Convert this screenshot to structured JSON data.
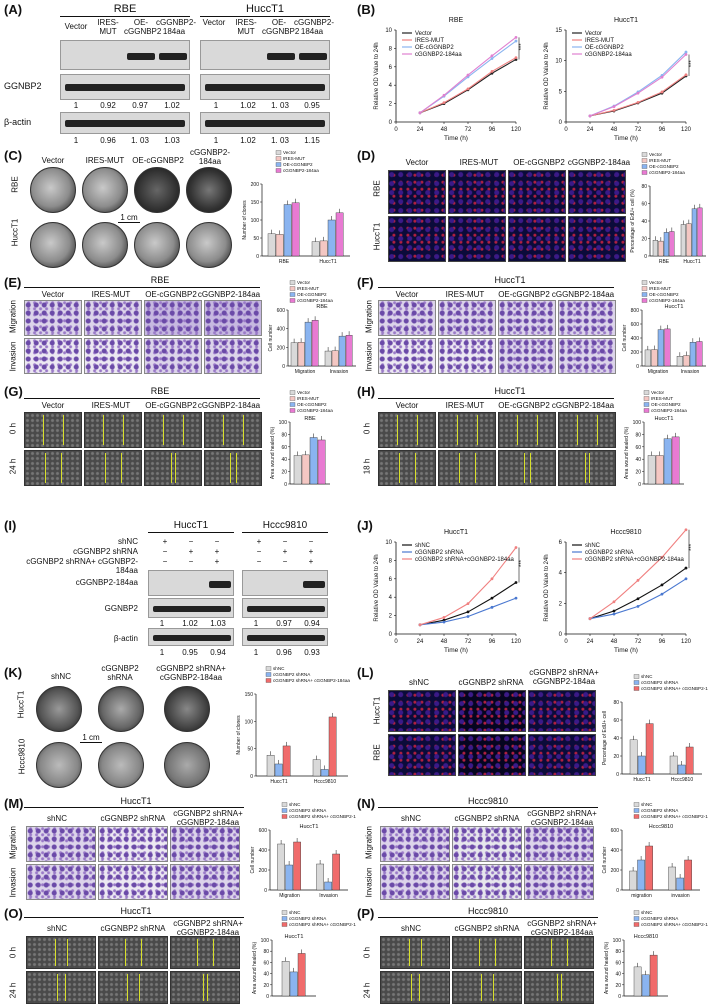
{
  "panels": {
    "A": {
      "label": "(A)",
      "groups": [
        "RBE",
        "HuccT1"
      ],
      "lanes": [
        "Vector",
        "IRES-MUT",
        "OE-cGGNBP2",
        "cGGNBP2-184aa"
      ],
      "rows": [
        "cGGNBP2-184aa",
        "GGNBP2",
        "β-actin"
      ],
      "row_labels_visible": [
        "GGNBP2",
        "β-actin"
      ],
      "ggnbp2_values": [
        [
          "1",
          "0.92",
          "0.97",
          "1.02"
        ],
        [
          "1",
          "1.02",
          "1. 03",
          "0.95"
        ]
      ],
      "actin_values": [
        [
          "1",
          "0.96",
          "1. 03",
          "1.03"
        ],
        [
          "1",
          "1.02",
          "1. 03",
          "1.15"
        ]
      ]
    },
    "B": {
      "label": "(B)",
      "sig": "***"
    },
    "C": {
      "label": "(C)",
      "lanes": [
        "Vector",
        "IRES-MUT",
        "OE-cGGNBP2",
        "cGGNBP2-184aa"
      ],
      "rows": [
        "RBE",
        "HuccT1"
      ],
      "scale": "1 cm"
    },
    "D": {
      "label": "(D)",
      "lanes": [
        "Vector",
        "IRES-MUT",
        "OE-cGGNBP2",
        "cGGNBP2-184aa"
      ],
      "rows": [
        "RBE",
        "HuccT1"
      ]
    },
    "E": {
      "label": "(E)",
      "title": "RBE",
      "lanes": [
        "Vector",
        "IRES-MUT",
        "OE-cGGNBP2",
        "cGGNBP2-184aa"
      ],
      "rows": [
        "Migration",
        "Invasion"
      ]
    },
    "F": {
      "label": "(F)",
      "title": "HuccT1",
      "lanes": [
        "Vector",
        "IRES-MUT",
        "OE-cGGNBP2",
        "cGGNBP2-184aa"
      ],
      "rows": [
        "Migration",
        "Invasion"
      ]
    },
    "G": {
      "label": "(G)",
      "title": "RBE",
      "lanes": [
        "Vector",
        "IRES-MUT",
        "OE-cGGNBP2",
        "cGGNBP2-184aa"
      ],
      "rows": [
        "0 h",
        "24 h"
      ]
    },
    "H": {
      "label": "(H)",
      "title": "HuccT1",
      "lanes": [
        "Vector",
        "IRES-MUT",
        "OE-cGGNBP2",
        "cGGNBP2-184aa"
      ],
      "rows": [
        "0 h",
        "18 h"
      ]
    },
    "I": {
      "label": "(I)",
      "groups": [
        "HuccT1",
        "Hccc9810"
      ],
      "conditions": [
        "shNC",
        "cGGNBP2 shRNA",
        "cGGNBP2 shRNA+ cGGNBP2-184aa"
      ],
      "signs": [
        [
          "+",
          "−",
          "−"
        ],
        [
          "−",
          "+",
          "+"
        ],
        [
          "−",
          "−",
          "+"
        ]
      ],
      "rows": [
        "cGGNBP2-184aa",
        "GGNBP2",
        "β-actin"
      ],
      "ggnbp2_values": [
        [
          "1",
          "1.02",
          "1.03"
        ],
        [
          "1",
          "0.97",
          "0.94"
        ]
      ],
      "actin_values": [
        [
          "1",
          "0.95",
          "0.94"
        ],
        [
          "1",
          "0.96",
          "0.93"
        ]
      ]
    },
    "J": {
      "label": "(J)",
      "sig": "***"
    },
    "K": {
      "label": "(K)",
      "lanes": [
        "shNC",
        "cGGNBP2 shRNA",
        "cGGNBP2 shRNA+ cGGNBP2-184aa"
      ],
      "rows": [
        "HuccT1",
        "Hccc9810"
      ],
      "scale": "1 cm"
    },
    "L": {
      "label": "(L)",
      "lanes": [
        "shNC",
        "cGGNBP2 shRNA",
        "cGGNBP2 shRNA+ cGGNBP2-184aa"
      ],
      "rows": [
        "HuccT1",
        "RBE"
      ]
    },
    "M": {
      "label": "(M)",
      "title": "HuccT1",
      "lanes": [
        "shNC",
        "cGGNBP2 shRNA",
        "cGGNBP2 shRNA+ cGGNBP2-184aa"
      ],
      "rows": [
        "Migration",
        "Invasion"
      ]
    },
    "N": {
      "label": "(N)",
      "title": "Hccc9810",
      "lanes": [
        "shNC",
        "cGGNBP2 shRNA",
        "cGGNBP2 shRNA+ cGGNBP2-184aa"
      ],
      "rows": [
        "Migration",
        "Invasion"
      ]
    },
    "O": {
      "label": "(O)",
      "title": "HuccT1",
      "lanes": [
        "shNC",
        "cGGNBP2 shRNA",
        "cGGNBP2 shRNA+ cGGNBP2-184aa"
      ],
      "rows": [
        "0 h",
        "24 h"
      ]
    },
    "P": {
      "label": "(P)",
      "title": "Hccc9810",
      "lanes": [
        "shNC",
        "cGGNBP2 shRNA",
        "cGGNBP2 shRNA+ cGGNBP2-184aa"
      ],
      "rows": [
        "0 h",
        "24 h"
      ]
    }
  },
  "colors": {
    "vector": "#222222",
    "ires": "#f08080",
    "oe": "#8ab4f0",
    "aa184": "#e080d0",
    "bar_fills": [
      "#d9d9d9",
      "#f4c7c3",
      "#8ab4f0",
      "#e87ad2"
    ],
    "kd_fills": [
      "#d9d9d9",
      "#8ab4f0",
      "#f06b6b"
    ],
    "kd_lines": [
      "#111111",
      "#4a78d0",
      "#f08080"
    ]
  },
  "chart_data": [
    {
      "id": "B-RBE",
      "type": "line",
      "title": "RBE",
      "xlabel": "Time (h)",
      "ylabel": "Relative OD Value to 24h",
      "x": [
        24,
        48,
        72,
        96,
        120
      ],
      "xlim": [
        0,
        120
      ],
      "ylim": [
        0,
        10
      ],
      "yticks": [
        0,
        2,
        4,
        6,
        8,
        10
      ],
      "series": [
        {
          "name": "Vector",
          "values": [
            1.0,
            2.0,
            3.5,
            5.3,
            6.8
          ]
        },
        {
          "name": "IRES-MUT",
          "values": [
            1.0,
            2.1,
            3.6,
            5.5,
            7.0
          ]
        },
        {
          "name": "OE-cGGNBP2",
          "values": [
            1.0,
            2.8,
            4.9,
            6.9,
            8.8
          ]
        },
        {
          "name": "cGGNBP2-184aa",
          "values": [
            1.0,
            2.9,
            5.1,
            7.2,
            9.2
          ]
        }
      ]
    },
    {
      "id": "B-HuccT1",
      "type": "line",
      "title": "HuccT1",
      "xlabel": "Time (h)",
      "ylabel": "Relative OD Value to 24h",
      "x": [
        24,
        48,
        72,
        96,
        120
      ],
      "xlim": [
        0,
        120
      ],
      "ylim": [
        0,
        15
      ],
      "yticks": [
        0,
        5,
        10,
        15
      ],
      "series": [
        {
          "name": "Vector",
          "values": [
            1.0,
            1.8,
            3.1,
            4.7,
            7.5
          ]
        },
        {
          "name": "IRES-MUT",
          "values": [
            1.0,
            1.9,
            3.2,
            4.9,
            7.7
          ]
        },
        {
          "name": "OE-cGGNBP2",
          "values": [
            1.0,
            2.6,
            4.9,
            7.6,
            11.4
          ]
        },
        {
          "name": "cGGNBP2-184aa",
          "values": [
            1.0,
            2.5,
            4.7,
            7.3,
            11.0
          ]
        }
      ]
    },
    {
      "id": "C-bar",
      "type": "bar",
      "ylabel": "Number of clones",
      "categories": [
        "RBE",
        "HuccT1"
      ],
      "ylim": [
        0,
        200
      ],
      "yticks": [
        0,
        50,
        100,
        150,
        200
      ],
      "series": [
        {
          "name": "Vector",
          "values": [
            62,
            40
          ]
        },
        {
          "name": "IRES-MUT",
          "values": [
            60,
            42
          ]
        },
        {
          "name": "OE-cGGNBP2",
          "values": [
            143,
            100
          ]
        },
        {
          "name": "cGGNBP2-184aa",
          "values": [
            148,
            120
          ]
        }
      ]
    },
    {
      "id": "D-bar",
      "type": "bar",
      "ylabel": "Percentage of EdU+ cell (%)",
      "categories": [
        "RBE",
        "HuccT1"
      ],
      "ylim": [
        0,
        80
      ],
      "yticks": [
        0,
        20,
        40,
        60,
        80
      ],
      "series": [
        {
          "name": "Vector",
          "values": [
            18,
            36
          ]
        },
        {
          "name": "IRES-MUT",
          "values": [
            17,
            37
          ]
        },
        {
          "name": "OE-cGGNBP2",
          "values": [
            27,
            54
          ]
        },
        {
          "name": "cGGNBP2-184aa",
          "values": [
            28,
            55
          ]
        }
      ]
    },
    {
      "id": "E-bar",
      "type": "bar",
      "title": "RBE",
      "ylabel": "Cell number",
      "categories": [
        "Migration",
        "Invasion"
      ],
      "ylim": [
        0,
        600
      ],
      "yticks": [
        0,
        200,
        400,
        600
      ],
      "series": [
        {
          "name": "Vector",
          "values": [
            250,
            160
          ]
        },
        {
          "name": "IRES-MUT",
          "values": [
            255,
            165
          ]
        },
        {
          "name": "OE-cGGNBP2",
          "values": [
            470,
            320
          ]
        },
        {
          "name": "cGGNBP2-184aa",
          "values": [
            490,
            330
          ]
        }
      ]
    },
    {
      "id": "F-bar",
      "type": "bar",
      "title": "HuccT1",
      "ylabel": "Cell number",
      "categories": [
        "Migration",
        "Invasion"
      ],
      "ylim": [
        0,
        800
      ],
      "yticks": [
        0,
        200,
        400,
        600,
        800
      ],
      "series": [
        {
          "name": "Vector",
          "values": [
            230,
            140
          ]
        },
        {
          "name": "IRES-MUT",
          "values": [
            235,
            150
          ]
        },
        {
          "name": "OE-cGGNBP2",
          "values": [
            520,
            340
          ]
        },
        {
          "name": "cGGNBP2-184aa",
          "values": [
            530,
            350
          ]
        }
      ]
    },
    {
      "id": "G-bar",
      "type": "bar",
      "title": "RBE",
      "ylabel": "Area wound healed (%)",
      "categories": [
        ""
      ],
      "ylim": [
        0,
        100
      ],
      "yticks": [
        0,
        20,
        40,
        60,
        80,
        100
      ],
      "series": [
        {
          "name": "Vector",
          "values": [
            46
          ]
        },
        {
          "name": "IRES-MUT",
          "values": [
            47
          ]
        },
        {
          "name": "OE-cGGNBP2",
          "values": [
            75
          ]
        },
        {
          "name": "cGGNBP2-184aa",
          "values": [
            71
          ]
        }
      ]
    },
    {
      "id": "H-bar",
      "type": "bar",
      "title": "HuccT1",
      "ylabel": "Area wound healed (%)",
      "categories": [
        ""
      ],
      "ylim": [
        0,
        100
      ],
      "yticks": [
        0,
        20,
        40,
        60,
        80,
        100
      ],
      "series": [
        {
          "name": "Vector",
          "values": [
            46
          ]
        },
        {
          "name": "IRES-MUT",
          "values": [
            46
          ]
        },
        {
          "name": "OE-cGGNBP2",
          "values": [
            73
          ]
        },
        {
          "name": "cGGNBP2-184aa",
          "values": [
            76
          ]
        }
      ]
    },
    {
      "id": "J-HuccT1",
      "type": "line",
      "title": "HuccT1",
      "xlabel": "Time (h)",
      "ylabel": "Relative OD Value to 24h",
      "x": [
        24,
        48,
        72,
        96,
        120
      ],
      "xlim": [
        0,
        120
      ],
      "ylim": [
        0,
        10
      ],
      "yticks": [
        0,
        2,
        4,
        6,
        8,
        10
      ],
      "series": [
        {
          "name": "shNC",
          "values": [
            1.0,
            1.5,
            2.4,
            3.9,
            5.6
          ]
        },
        {
          "name": "cGGNBP2 shRNA",
          "values": [
            1.0,
            1.3,
            1.9,
            2.9,
            3.9
          ]
        },
        {
          "name": "cGGNBP2 shRNA+cGGNBP2-184aa",
          "values": [
            1.0,
            1.8,
            3.3,
            6.0,
            9.4
          ]
        }
      ]
    },
    {
      "id": "J-Hccc9810",
      "type": "line",
      "title": "Hccc9810",
      "xlabel": "Time (h)",
      "ylabel": "Relative OD Value to 24h",
      "x": [
        24,
        48,
        72,
        96,
        120
      ],
      "xlim": [
        0,
        120
      ],
      "ylim": [
        0,
        6
      ],
      "yticks": [
        0,
        2,
        4,
        6
      ],
      "series": [
        {
          "name": "shNC",
          "values": [
            1.0,
            1.5,
            2.3,
            3.2,
            4.3
          ]
        },
        {
          "name": "cGGNBP2 shRNA",
          "values": [
            1.0,
            1.3,
            1.8,
            2.6,
            3.6
          ]
        },
        {
          "name": "cGGNBP2 shRNA+cGGNBP2-184aa",
          "values": [
            1.0,
            2.1,
            3.5,
            5.0,
            6.8
          ]
        }
      ]
    },
    {
      "id": "K-bar",
      "type": "bar",
      "ylabel": "Number of clones",
      "categories": [
        "HuccT1",
        "Hccc9810"
      ],
      "ylim": [
        0,
        150
      ],
      "yticks": [
        0,
        50,
        100,
        150
      ],
      "series": [
        {
          "name": "shNC",
          "values": [
            38,
            30
          ]
        },
        {
          "name": "cGGNBP2 shRNA",
          "values": [
            22,
            12
          ]
        },
        {
          "name": "cGGNBP2 shRNA+ cGGNBP2-184aa",
          "values": [
            55,
            108
          ]
        }
      ]
    },
    {
      "id": "L-bar",
      "type": "bar",
      "ylabel": "Percentage of EdU+ cell",
      "categories": [
        "HuccT1",
        "Hccc9810"
      ],
      "ylim": [
        0,
        80
      ],
      "yticks": [
        0,
        20,
        40,
        60,
        80
      ],
      "series": [
        {
          "name": "shNC",
          "values": [
            38,
            20
          ]
        },
        {
          "name": "cGGNBP2 shRNA",
          "values": [
            20,
            10
          ]
        },
        {
          "name": "cGGNBP2 shRNA+ cGGNBP2-184aa",
          "values": [
            56,
            30
          ]
        }
      ]
    },
    {
      "id": "M-bar",
      "type": "bar",
      "title": "HuccT1",
      "ylabel": "Cell number",
      "categories": [
        "Migration",
        "Invasion"
      ],
      "ylim": [
        0,
        600
      ],
      "yticks": [
        0,
        200,
        400,
        600
      ],
      "series": [
        {
          "name": "shNC",
          "values": [
            460,
            260
          ]
        },
        {
          "name": "cGGNBP2 shRNA",
          "values": [
            250,
            80
          ]
        },
        {
          "name": "cGGNBP2 shRNA+ cGGNBP2-184aa",
          "values": [
            480,
            360
          ]
        }
      ]
    },
    {
      "id": "N-bar",
      "type": "bar",
      "title": "Hccc9810",
      "ylabel": "Cell number",
      "categories": [
        "migration",
        "invasion"
      ],
      "ylim": [
        0,
        600
      ],
      "yticks": [
        0,
        200,
        400,
        600
      ],
      "series": [
        {
          "name": "shNC",
          "values": [
            190,
            230
          ]
        },
        {
          "name": "cGGNBP2 shRNA",
          "values": [
            300,
            120
          ]
        },
        {
          "name": "cGGNBP2 shRNA+ cGGNBP2-184aa",
          "values": [
            440,
            300
          ]
        }
      ]
    },
    {
      "id": "O-bar",
      "type": "bar",
      "title": "HuccT1",
      "ylabel": "Area wound healed (%)",
      "categories": [
        ""
      ],
      "ylim": [
        0,
        100
      ],
      "yticks": [
        0,
        20,
        40,
        60,
        80,
        100
      ],
      "series": [
        {
          "name": "shNC",
          "values": [
            62
          ]
        },
        {
          "name": "cGGNBP2 shRNA",
          "values": [
            43
          ]
        },
        {
          "name": "cGGNBP2 shRNA+ cGGNBP2-184aa",
          "values": [
            76
          ]
        }
      ]
    },
    {
      "id": "P-bar",
      "type": "bar",
      "title": "Hccc9810",
      "ylabel": "Area wound healed (%)",
      "categories": [
        ""
      ],
      "ylim": [
        0,
        100
      ],
      "yticks": [
        0,
        20,
        40,
        60,
        80,
        100
      ],
      "series": [
        {
          "name": "shNC",
          "values": [
            52
          ]
        },
        {
          "name": "cGGNBP2 shRNA",
          "values": [
            38
          ]
        },
        {
          "name": "cGGNBP2 shRNA+ cGGNBP2-184aa",
          "values": [
            73
          ]
        }
      ]
    }
  ]
}
